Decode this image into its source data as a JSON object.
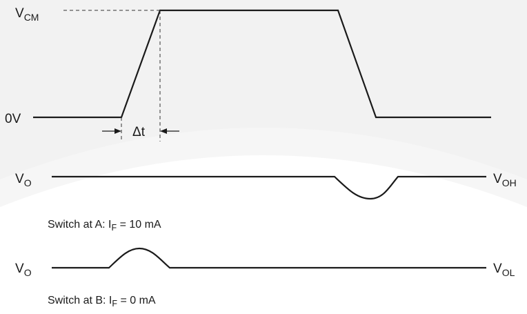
{
  "labels": {
    "vcm_main": "V",
    "vcm_sub": "CM",
    "zero_v": "0V",
    "delta_t": "Δt",
    "vo_main": "V",
    "vo_sub": "O",
    "voh_main": "V",
    "voh_sub": "OH",
    "vol_main": "V",
    "vol_sub": "OL"
  },
  "captions": {
    "switch_a_pre": "Switch at A: I",
    "switch_a_sub": "F",
    "switch_a_post": " = 10 mA",
    "switch_b_pre": "Switch at B: I",
    "switch_b_sub": "F",
    "switch_b_post": " = 0 mA"
  },
  "colors": {
    "trace": "#1a1a1a",
    "watermark": "#f2f2f2"
  }
}
